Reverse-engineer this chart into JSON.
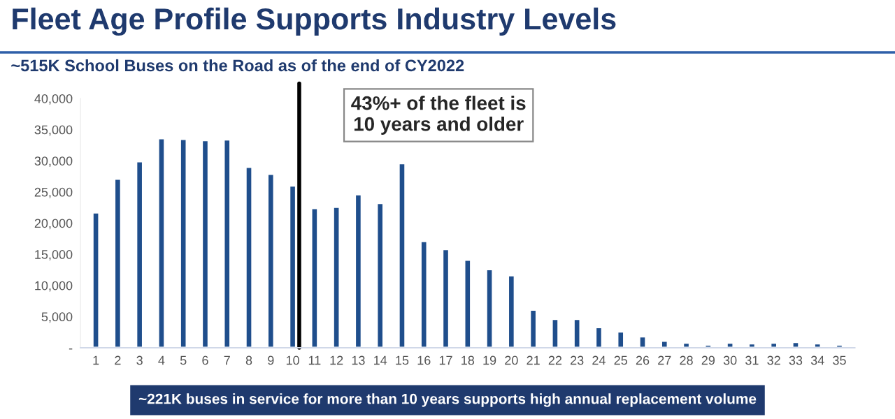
{
  "chart_data": {
    "type": "bar",
    "title": "Fleet Age Profile Supports Industry Levels",
    "subtitle": "~515K School Buses on the Road as of the end of CY2022",
    "x": [
      1,
      2,
      3,
      4,
      5,
      6,
      7,
      8,
      9,
      10,
      11,
      12,
      13,
      14,
      15,
      16,
      17,
      18,
      19,
      20,
      21,
      22,
      23,
      24,
      25,
      26,
      27,
      28,
      29,
      30,
      31,
      32,
      33,
      34,
      35
    ],
    "values": [
      21700,
      27100,
      29900,
      33600,
      33500,
      33300,
      33400,
      29000,
      27900,
      26000,
      22400,
      22600,
      24600,
      23200,
      29600,
      17100,
      15800,
      14100,
      12600,
      11600,
      6100,
      4600,
      4600,
      3300,
      2600,
      1800,
      1100,
      800,
      500,
      800,
      700,
      800,
      900,
      700,
      500
    ],
    "color": "#1f4e8c",
    "xlim": [
      0.3,
      35.7
    ],
    "xticks": [
      1,
      2,
      3,
      4,
      5,
      6,
      7,
      8,
      9,
      10,
      11,
      12,
      13,
      14,
      15,
      16,
      17,
      18,
      19,
      20,
      21,
      22,
      23,
      24,
      25,
      26,
      27,
      28,
      29,
      30,
      31,
      32,
      33,
      34,
      35
    ],
    "ylim": [
      0,
      40000
    ],
    "yticks": [
      {
        "value": 0,
        "label": "-"
      },
      {
        "value": 5000,
        "label": "5,000"
      },
      {
        "value": 10000,
        "label": "10,000"
      },
      {
        "value": 15000,
        "label": "15,000"
      },
      {
        "value": 20000,
        "label": "20,000"
      },
      {
        "value": 25000,
        "label": "25,000"
      },
      {
        "value": 30000,
        "label": "30,000"
      },
      {
        "value": 35000,
        "label": "35,000"
      },
      {
        "value": 40000,
        "label": "40,000"
      }
    ],
    "ref_lines": [
      {
        "axis": "x",
        "value": 10.3,
        "color": "#000000"
      }
    ],
    "annotations": [
      "43%+ of the fleet is\n10 years and older",
      "~221K buses in service for more than 10 years supports high annual replacement volume"
    ],
    "grid": false
  }
}
